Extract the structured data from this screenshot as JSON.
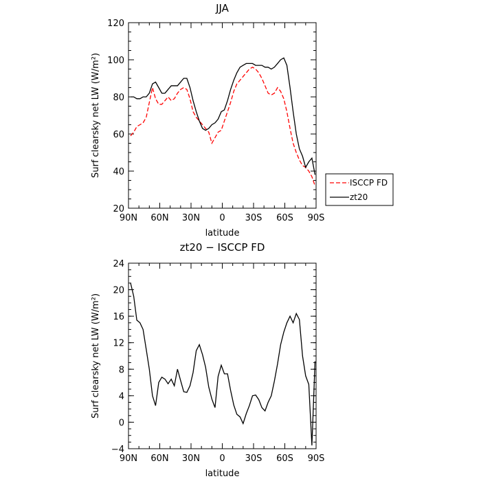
{
  "chart_data": [
    {
      "type": "line",
      "title": "JJA",
      "xlabel": "latitude",
      "ylabel": "Surf clearsky net LW (W/m²)",
      "xlim": [
        -90,
        90
      ],
      "ylim": [
        20,
        120
      ],
      "xticks": [
        -90,
        -60,
        -30,
        0,
        30,
        60,
        90
      ],
      "xtick_labels": [
        "90N",
        "60N",
        "30N",
        "0",
        "30S",
        "60S",
        "90S"
      ],
      "yticks": [
        20,
        40,
        60,
        80,
        100,
        120
      ],
      "ytick_labels": [
        "20",
        "40",
        "60",
        "80",
        "100",
        "120"
      ],
      "legend_position": "outside-right",
      "series": [
        {
          "name": "ISCCP FD",
          "color": "#ff0000",
          "dash": "dashed",
          "x": [
            -88,
            -85,
            -82,
            -79,
            -76,
            -73,
            -70,
            -67,
            -64,
            -61,
            -58,
            -55,
            -52,
            -49,
            -46,
            -43,
            -40,
            -37,
            -34,
            -31,
            -28,
            -25,
            -22,
            -19,
            -16,
            -13,
            -10,
            -7,
            -4,
            -1,
            2,
            5,
            8,
            11,
            14,
            17,
            20,
            23,
            26,
            29,
            32,
            35,
            38,
            41,
            44,
            47,
            50,
            53,
            56,
            59,
            62,
            65,
            68,
            71,
            74,
            77,
            80,
            83,
            86,
            89
          ],
          "values": [
            59,
            61,
            64,
            65,
            66,
            69,
            77,
            85,
            79,
            76,
            76,
            78,
            80,
            78,
            79,
            82,
            84,
            85,
            84,
            79,
            72,
            69,
            67,
            65,
            63,
            61,
            55,
            58,
            61,
            62,
            67,
            72,
            77,
            83,
            87,
            89,
            91,
            93,
            95,
            96,
            95,
            93,
            90,
            86,
            82,
            81,
            82,
            85,
            83,
            79,
            72,
            63,
            55,
            50,
            46,
            43,
            42,
            40,
            37,
            32
          ]
        },
        {
          "name": "zt20",
          "color": "#000000",
          "dash": "solid",
          "x": [
            -88,
            -85,
            -82,
            -79,
            -76,
            -73,
            -70,
            -67,
            -64,
            -61,
            -58,
            -55,
            -52,
            -49,
            -46,
            -43,
            -40,
            -37,
            -34,
            -31,
            -28,
            -25,
            -22,
            -19,
            -16,
            -13,
            -10,
            -7,
            -4,
            -1,
            2,
            5,
            8,
            11,
            14,
            17,
            20,
            23,
            26,
            29,
            32,
            35,
            38,
            41,
            44,
            47,
            50,
            53,
            56,
            59,
            62,
            65,
            68,
            71,
            74,
            77,
            80,
            83,
            86,
            89
          ],
          "values": [
            80,
            80,
            79,
            79,
            80,
            80,
            82,
            87,
            88,
            85,
            82,
            82,
            84,
            86,
            86,
            86,
            88,
            90,
            90,
            85,
            78,
            72,
            67,
            63,
            62,
            63,
            65,
            66,
            68,
            72,
            73,
            78,
            84,
            89,
            93,
            96,
            97,
            98,
            98,
            98,
            97,
            97,
            97,
            96,
            96,
            95,
            96,
            98,
            100,
            101,
            97,
            85,
            72,
            60,
            52,
            48,
            42,
            45,
            47,
            38
          ]
        }
      ]
    },
    {
      "type": "line",
      "title": "zt20 − ISCCP FD",
      "xlabel": "latitude",
      "ylabel": "Surf clearsky net LW (W/m²)",
      "xlim": [
        -90,
        90
      ],
      "ylim": [
        -4,
        24
      ],
      "xticks": [
        -90,
        -60,
        -30,
        0,
        30,
        60,
        90
      ],
      "xtick_labels": [
        "90N",
        "60N",
        "30N",
        "0",
        "30S",
        "60S",
        "90S"
      ],
      "yticks": [
        -4,
        0,
        4,
        8,
        12,
        16,
        20,
        24
      ],
      "ytick_labels": [
        "−4",
        "0",
        "4",
        "8",
        "12",
        "16",
        "20",
        "24"
      ],
      "series": [
        {
          "color": "#000000",
          "dash": "solid",
          "x": [
            -88,
            -85,
            -82,
            -79,
            -76,
            -73,
            -70,
            -67,
            -64,
            -61,
            -58,
            -55,
            -52,
            -49,
            -46,
            -43,
            -40,
            -37,
            -34,
            -31,
            -28,
            -25,
            -22,
            -19,
            -16,
            -13,
            -10,
            -7,
            -4,
            -1,
            2,
            5,
            8,
            11,
            14,
            17,
            20,
            23,
            26,
            29,
            32,
            35,
            38,
            41,
            44,
            47,
            50,
            53,
            56,
            59,
            62,
            65,
            68,
            71,
            74,
            77,
            80,
            83,
            86,
            89
          ],
          "values": [
            21,
            19,
            15.4,
            15,
            14,
            11,
            8,
            4,
            2.5,
            6,
            6.8,
            6.5,
            5.8,
            6.5,
            5.5,
            8,
            6.3,
            4.6,
            4.5,
            5.5,
            7.5,
            10.8,
            11.7,
            10.2,
            8.3,
            5.3,
            3.5,
            2.2,
            6.9,
            8.6,
            7.3,
            7.3,
            4.8,
            2.6,
            1.2,
            0.8,
            -0.2,
            1.3,
            2.5,
            4,
            4.1,
            3.4,
            2.2,
            1.7,
            3,
            4,
            6.2,
            8.8,
            11.7,
            13.6,
            15,
            16,
            15,
            16.4,
            15.5,
            10,
            7,
            5.7,
            -3.5,
            9.2
          ]
        }
      ]
    }
  ]
}
